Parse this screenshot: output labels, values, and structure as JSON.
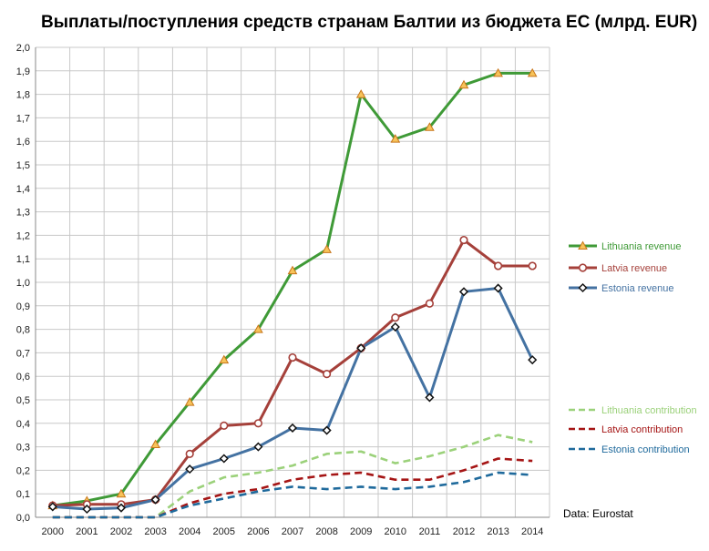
{
  "chart_data": {
    "type": "line",
    "title": "Выплаты/поступления средств странам Балтии из бюджета ЕС (млрд. EUR)",
    "source_note": "Data: Eurostat",
    "xlabel": "",
    "ylabel": "",
    "ylim": [
      0,
      2.0
    ],
    "ytick_step": 0.1,
    "yticks": [
      "0,0",
      "0,1",
      "0,2",
      "0,3",
      "0,4",
      "0,5",
      "0,6",
      "0,7",
      "0,8",
      "0,9",
      "1,0",
      "1,1",
      "1,2",
      "1,3",
      "1,4",
      "1,5",
      "1,6",
      "1,7",
      "1,8",
      "1,9",
      "2,0"
    ],
    "grid": true,
    "legend_position": "right",
    "categories": [
      "2000",
      "2001",
      "2002",
      "2003",
      "2004",
      "2005",
      "2006",
      "2007",
      "2008",
      "2009",
      "2010",
      "2011",
      "2012",
      "2013",
      "2014"
    ],
    "series": [
      {
        "name": "Lithuania revenue",
        "color": "#3f9a37",
        "dash": false,
        "marker": "triangle",
        "values": [
          0.05,
          0.07,
          0.1,
          0.31,
          0.49,
          0.67,
          0.8,
          1.05,
          1.14,
          1.8,
          1.61,
          1.66,
          1.84,
          1.89,
          1.89
        ]
      },
      {
        "name": "Latvia revenue",
        "color": "#a5403a",
        "dash": false,
        "marker": "circle",
        "values": [
          0.05,
          0.055,
          0.055,
          0.075,
          0.27,
          0.39,
          0.4,
          0.68,
          0.61,
          0.72,
          0.85,
          0.91,
          1.18,
          1.07,
          1.07
        ]
      },
      {
        "name": "Estonia revenue",
        "color": "#4472a2",
        "dash": false,
        "marker": "diamond",
        "values": [
          0.045,
          0.035,
          0.04,
          0.075,
          0.205,
          0.25,
          0.3,
          0.38,
          0.37,
          0.72,
          0.81,
          0.51,
          0.96,
          0.975,
          0.67
        ]
      },
      {
        "name": "Lithuania contribution",
        "color": "#9bd17a",
        "dash": true,
        "marker": "none",
        "values": [
          0,
          0,
          0,
          0,
          0.11,
          0.17,
          0.19,
          0.22,
          0.27,
          0.28,
          0.23,
          0.26,
          0.3,
          0.35,
          0.32
        ]
      },
      {
        "name": "Latvia contribution",
        "color": "#a51515",
        "dash": true,
        "marker": "none",
        "values": [
          0,
          0,
          0,
          0,
          0.06,
          0.1,
          0.12,
          0.16,
          0.18,
          0.19,
          0.16,
          0.16,
          0.2,
          0.25,
          0.24
        ]
      },
      {
        "name": "Estonia contribution",
        "color": "#1f6a9c",
        "dash": true,
        "marker": "none",
        "values": [
          0,
          0,
          0,
          0,
          0.05,
          0.08,
          0.11,
          0.13,
          0.12,
          0.13,
          0.12,
          0.13,
          0.15,
          0.19,
          0.18
        ]
      }
    ]
  }
}
